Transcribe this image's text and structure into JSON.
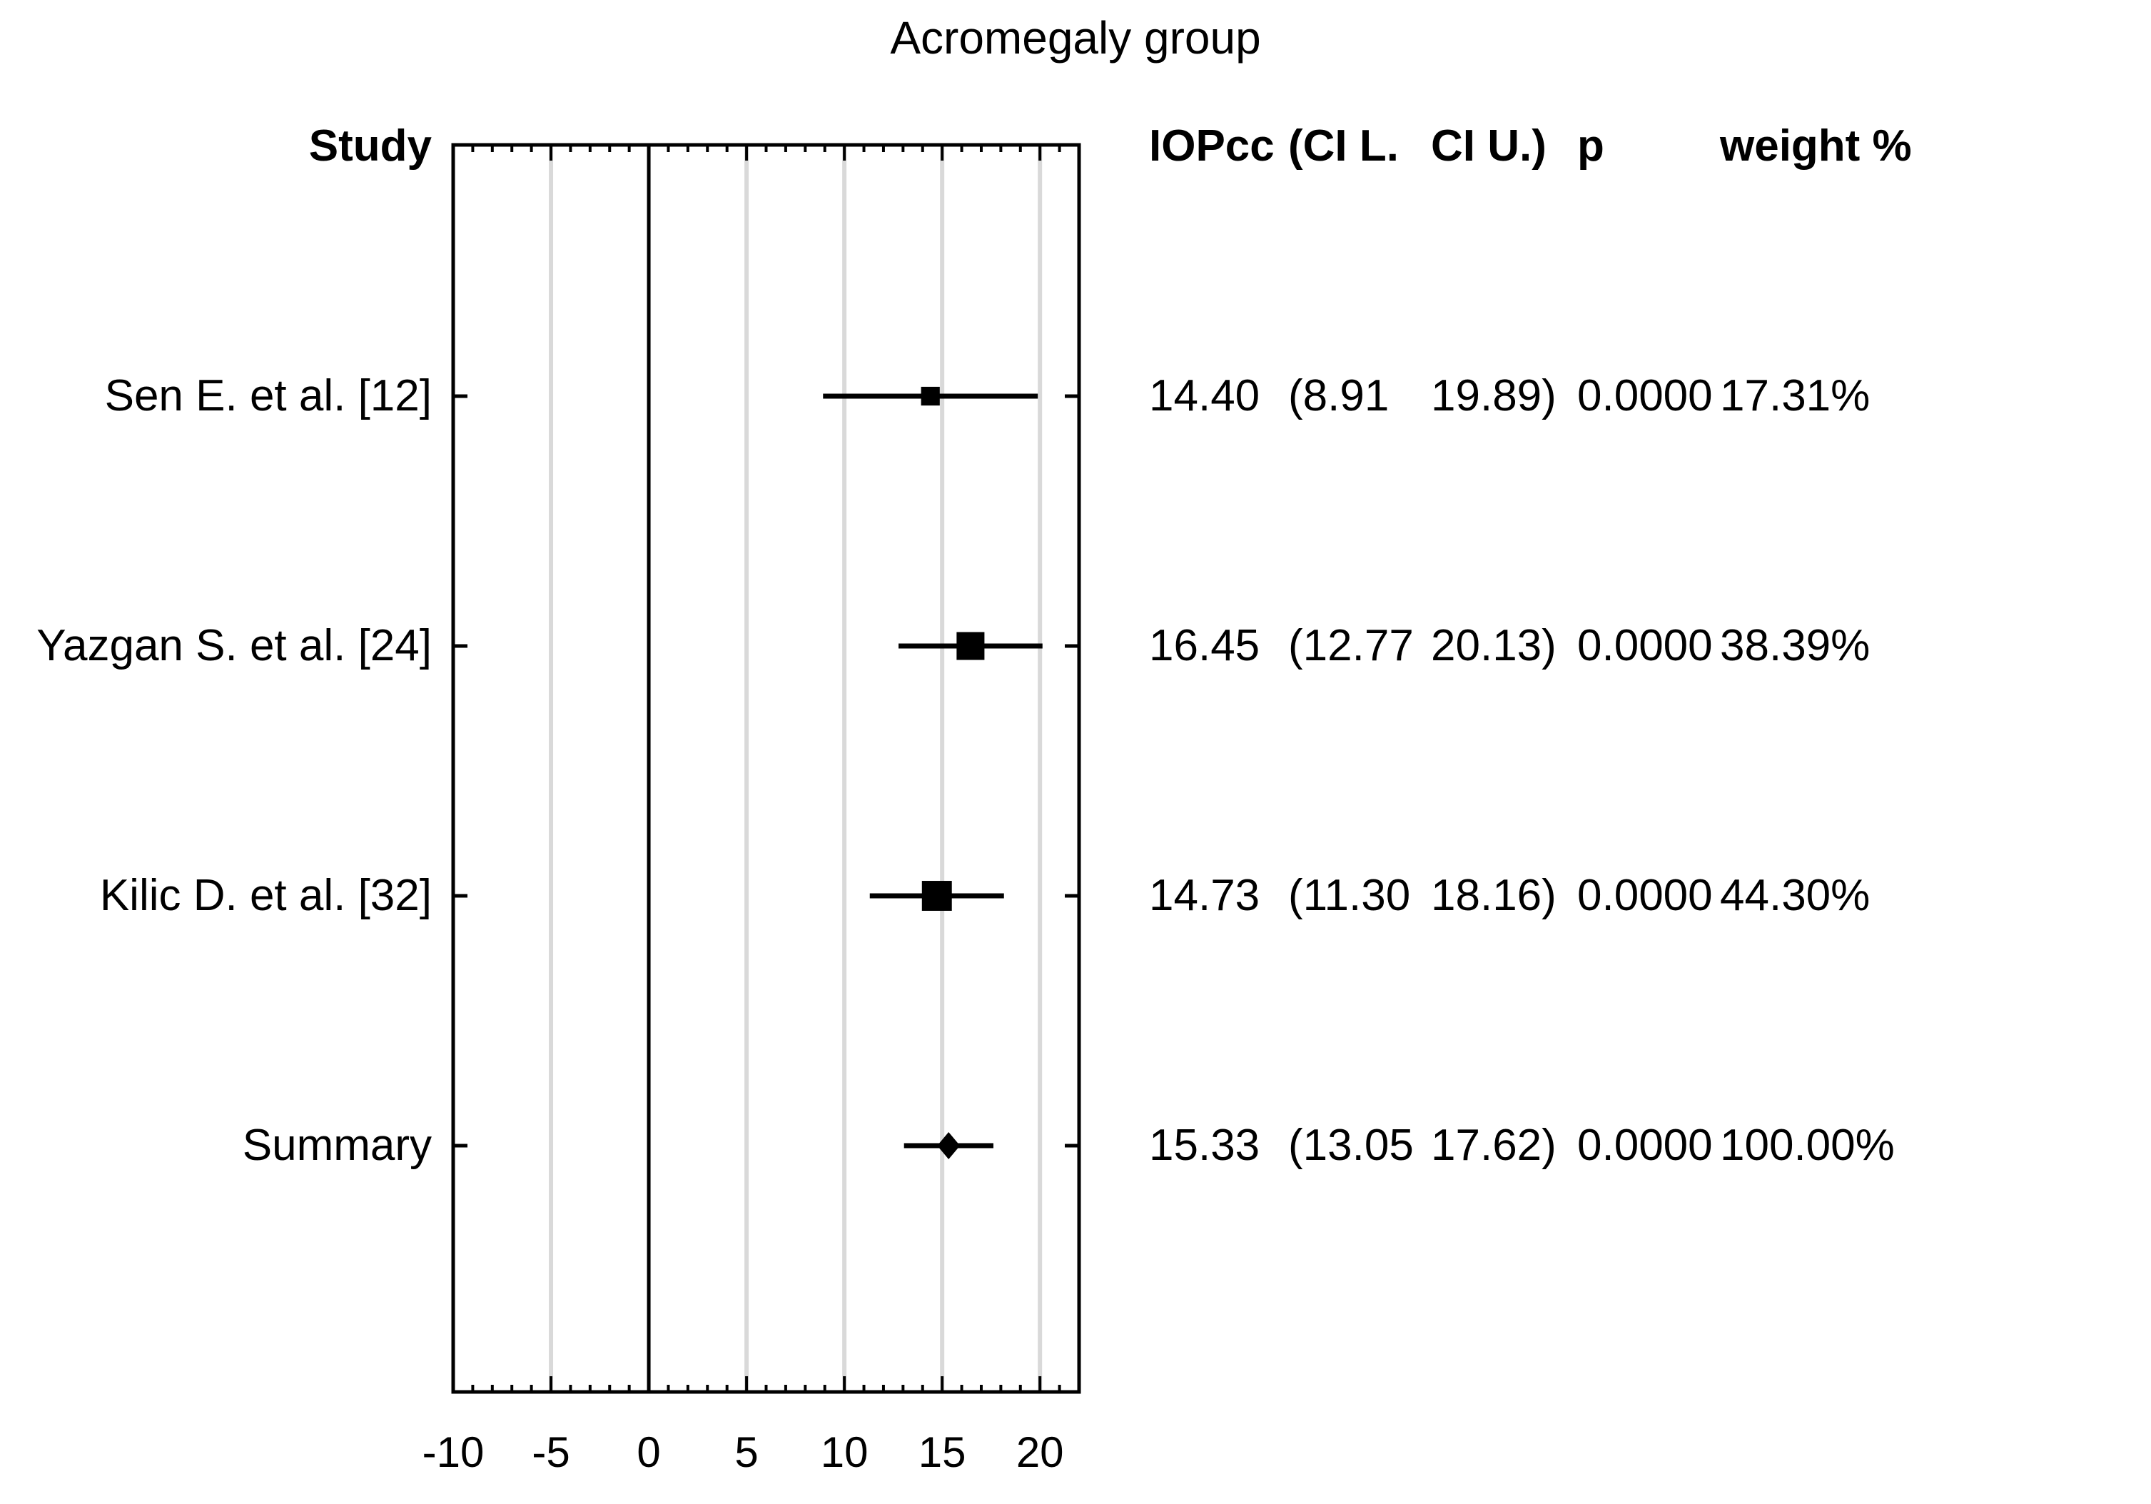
{
  "title": "Acromegaly group",
  "colors": {
    "background": "#ffffff",
    "text": "#000000",
    "grid": "#d9d9d9",
    "marker": "#000000"
  },
  "table": {
    "headers": {
      "study": "Study",
      "iopcc": "IOPcc",
      "ci_l": "(CI L.",
      "ci_u": "CI U.)",
      "p": "p",
      "weight": "weight %"
    },
    "rows": [
      {
        "study": "Sen E. et al. [12]",
        "iopcc": "14.40",
        "ci_l": "(8.91",
        "ci_u": "19.89)",
        "p": "0.0000",
        "weight": "17.31%"
      },
      {
        "study": "Yazgan S. et al. [24]",
        "iopcc": "16.45",
        "ci_l": "(12.77",
        "ci_u": "20.13)",
        "p": "0.0000",
        "weight": "38.39%"
      },
      {
        "study": "Kilic D. et al. [32]",
        "iopcc": "14.73",
        "ci_l": "(11.30",
        "ci_u": "18.16)",
        "p": "0.0000",
        "weight": "44.30%"
      },
      {
        "study": "Summary",
        "iopcc": "15.33",
        "ci_l": "(13.05",
        "ci_u": "17.62)",
        "p": "0.0000",
        "weight": "100.00%"
      }
    ]
  },
  "chart_data": {
    "type": "forest",
    "title": "Acromegaly group",
    "xlabel": "",
    "ylabel": "",
    "x_range": [
      -10,
      22
    ],
    "x_ticks": [
      -10,
      -5,
      0,
      5,
      10,
      15,
      20
    ],
    "minor_tick_step": 1,
    "zero_line": 0,
    "gridlines": [
      -5,
      5,
      10,
      15,
      20
    ],
    "grid_on": true,
    "legend": "none",
    "series": [
      {
        "label": "Sen E. et al. [12]",
        "estimate": 14.4,
        "ci_lower": 8.91,
        "ci_upper": 19.89,
        "p": "0.0000",
        "weight_pct": 17.31,
        "marker": "square"
      },
      {
        "label": "Yazgan S. et al. [24]",
        "estimate": 16.45,
        "ci_lower": 12.77,
        "ci_upper": 20.13,
        "p": "0.0000",
        "weight_pct": 38.39,
        "marker": "square"
      },
      {
        "label": "Kilic D. et al. [32]",
        "estimate": 14.73,
        "ci_lower": 11.3,
        "ci_upper": 18.16,
        "p": "0.0000",
        "weight_pct": 44.3,
        "marker": "square"
      },
      {
        "label": "Summary",
        "estimate": 15.33,
        "ci_lower": 13.05,
        "ci_upper": 17.62,
        "p": "0.0000",
        "weight_pct": 100.0,
        "marker": "diamond"
      }
    ]
  }
}
